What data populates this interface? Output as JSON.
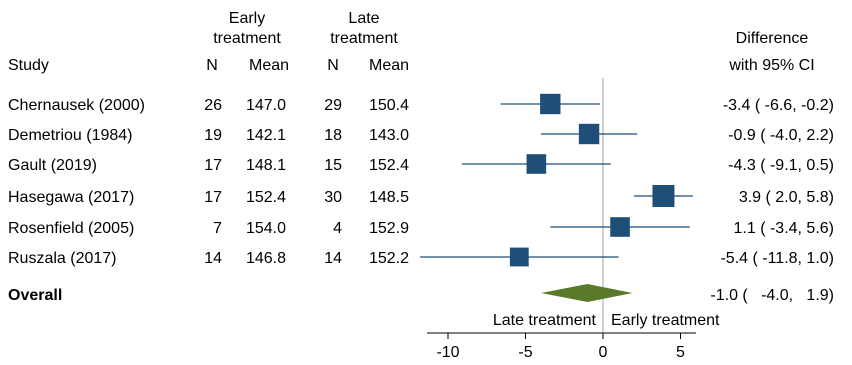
{
  "headers": {
    "study": "Study",
    "early_group": [
      "Early",
      "treatment"
    ],
    "late_group": [
      "Late",
      "treatment"
    ],
    "n": "N",
    "mean": "Mean",
    "difference": [
      "Difference",
      "with 95% CI"
    ]
  },
  "chart_data": {
    "type": "forest",
    "xlim": [
      -12,
      6
    ],
    "xticks": [
      -10,
      -5,
      0,
      5
    ],
    "reference_line": 0,
    "favors": {
      "left": "Late treatment",
      "right": "Early treatment"
    },
    "colors": {
      "marker": "#1f4e79",
      "line": "#1f4e79",
      "overall": "#5a7a2b",
      "refline": "#a0a0a0"
    },
    "studies": [
      {
        "study": "Chernausek (2000)",
        "early_n": "26",
        "early_mean": "147.0",
        "late_n": "29",
        "late_mean": "150.4",
        "diff": -3.4,
        "lo": -6.6,
        "hi": -0.2,
        "weight": 0.8,
        "ci_text": "-3.4 (   -6.6,  -0.2)"
      },
      {
        "study": "Demetriou (1984)",
        "early_n": "19",
        "early_mean": "142.1",
        "late_n": "18",
        "late_mean": "143.0",
        "diff": -0.9,
        "lo": -4.0,
        "hi": 2.2,
        "weight": 0.8,
        "ci_text": "-0.9 (   -4.0,   2.2)"
      },
      {
        "study": "Gault (2019)",
        "early_n": "17",
        "early_mean": "148.1",
        "late_n": "15",
        "late_mean": "152.4",
        "diff": -4.3,
        "lo": -9.1,
        "hi": 0.5,
        "weight": 0.7,
        "ci_text": "-4.3 (   -9.1,   0.5)"
      },
      {
        "study": "Hasegawa (2017)",
        "early_n": "17",
        "early_mean": "152.4",
        "late_n": "30",
        "late_mean": "148.5",
        "diff": 3.9,
        "lo": 2.0,
        "hi": 5.8,
        "weight": 1.0,
        "ci_text": "3.9 (    2.0,   5.8)"
      },
      {
        "study": "Rosenfield (2005)",
        "early_n": "7",
        "early_mean": "154.0",
        "late_n": "4",
        "late_mean": "152.9",
        "diff": 1.1,
        "lo": -3.4,
        "hi": 5.6,
        "weight": 0.7,
        "ci_text": "1.1 (   -3.4,   5.6)"
      },
      {
        "study": "Ruszala (2017)",
        "early_n": "14",
        "early_mean": "146.8",
        "late_n": "14",
        "late_mean": "152.2",
        "diff": -5.4,
        "lo": -11.8,
        "hi": 1.0,
        "weight": 0.6,
        "ci_text": "-5.4 (  -11.8,   1.0)"
      }
    ],
    "overall": {
      "label": "Overall",
      "diff": -1.0,
      "lo": -4.0,
      "hi": 1.9,
      "ci_text": "-1.0 (   -4.0,   1.9)"
    }
  }
}
